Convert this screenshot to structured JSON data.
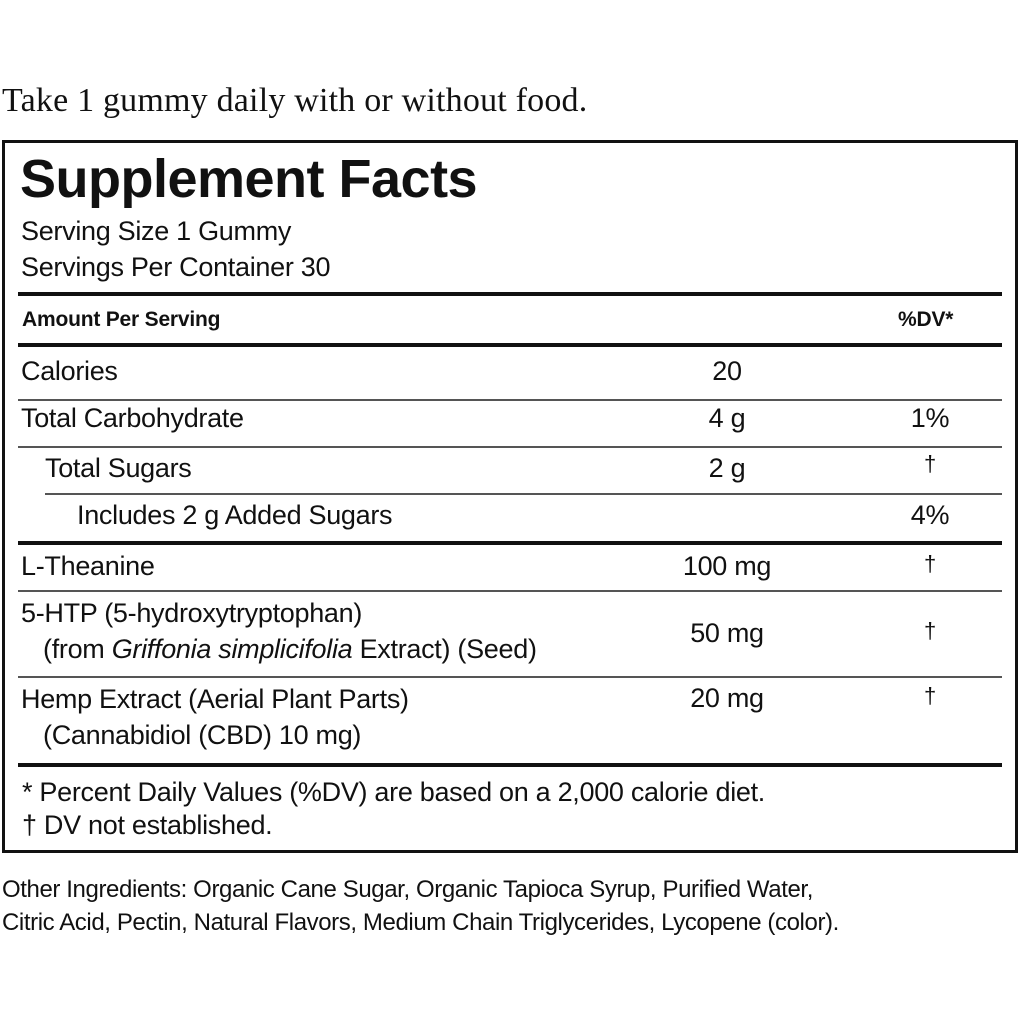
{
  "directions": "Take 1 gummy daily with or without food.",
  "panel": {
    "title": "Supplement Facts",
    "serving_size": "Serving Size 1 Gummy",
    "servings_per_container": "Servings Per Container 30",
    "header_amount": "Amount Per Serving",
    "header_dv": "%DV*",
    "rows": [
      {
        "name": "Calories",
        "amount": "20",
        "dv": ""
      },
      {
        "name": "Total Carbohydrate",
        "amount": "4 g",
        "dv": "1%"
      },
      {
        "name": "Total Sugars",
        "amount": "2 g",
        "dv": "†"
      },
      {
        "name": "Includes 2 g Added Sugars",
        "amount": "",
        "dv": "4%"
      },
      {
        "name": "L-Theanine",
        "amount": "100 mg",
        "dv": "†"
      },
      {
        "name": "5-HTP (5-hydroxytryptophan)",
        "sub_prefix": "(from ",
        "sub_italic": "Griffonia simplicifolia",
        "sub_suffix": " Extract) (Seed)",
        "amount": "50 mg",
        "dv": "†"
      },
      {
        "name": "Hemp Extract (Aerial Plant Parts)",
        "sub": "(Cannabidiol (CBD) 10 mg)",
        "amount": "20 mg",
        "dv": "†"
      }
    ],
    "footnote_1": "* Percent Daily Values (%DV) are based on a 2,000 calorie diet.",
    "footnote_2": "† DV not established."
  },
  "ingredients": {
    "line_1": "Other Ingredients: Organic Cane Sugar, Organic Tapioca Syrup, Purified Water,",
    "line_2": "Citric Acid, Pectin, Natural Flavors, Medium Chain Triglycerides, Lycopene (color)."
  }
}
